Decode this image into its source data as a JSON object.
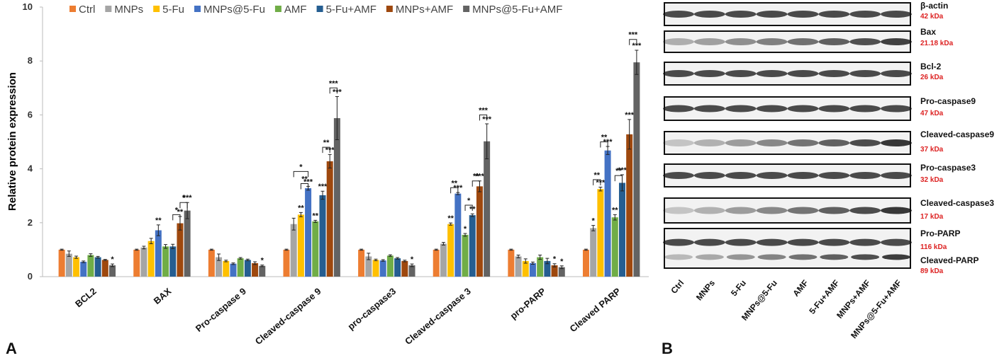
{
  "chart_data": {
    "type": "bar",
    "y_label": "Relative protein expression",
    "categories": [
      "BCL2",
      "BAX",
      "Pro-caspase 9",
      "Cleaved-caspase 9",
      "pro-caspase3",
      "Cleaved-caspase 3",
      "pro-PARP",
      "Cleaved PARP"
    ],
    "ylim": [
      0,
      10
    ],
    "yticks": [
      0,
      2,
      4,
      6,
      8,
      10
    ],
    "grid": false,
    "legend": "top",
    "series": [
      {
        "name": "Ctrl",
        "color": "#ed7d31",
        "values": [
          1,
          1,
          1,
          1,
          1,
          1,
          1,
          1
        ],
        "errors": [
          0.02,
          0.02,
          0.02,
          0.02,
          0.02,
          0.02,
          0.02,
          0.02
        ],
        "significance": [
          null,
          null,
          null,
          null,
          null,
          null,
          null,
          null
        ]
      },
      {
        "name": "MNPs",
        "color": "#a5a5a5",
        "values": [
          0.85,
          1.08,
          0.72,
          1.95,
          0.75,
          1.22,
          0.75,
          1.8
        ],
        "errors": [
          0.1,
          0.05,
          0.12,
          0.22,
          0.12,
          0.05,
          0.05,
          0.1
        ],
        "significance": [
          null,
          null,
          null,
          null,
          null,
          null,
          null,
          "*"
        ]
      },
      {
        "name": "5-Fu",
        "color": "#ffc000",
        "values": [
          0.72,
          1.32,
          0.58,
          2.3,
          0.62,
          1.95,
          0.58,
          3.25
        ],
        "errors": [
          0.04,
          0.1,
          0.03,
          0.08,
          0.03,
          0.04,
          0.08,
          0.07
        ],
        "significance": [
          null,
          null,
          null,
          "**",
          null,
          "**",
          null,
          "***"
        ]
      },
      {
        "name": "MNPs@5-Fu",
        "color": "#4472c4",
        "values": [
          0.55,
          1.72,
          0.48,
          3.28,
          0.6,
          3.08,
          0.5,
          4.68
        ],
        "errors": [
          0.03,
          0.2,
          0.03,
          0.07,
          0.03,
          0.04,
          0.04,
          0.15
        ],
        "significance": [
          null,
          "**",
          null,
          "***",
          null,
          "***",
          null,
          "***"
        ]
      },
      {
        "name": "AMF",
        "color": "#70ad47",
        "values": [
          0.8,
          1.12,
          0.68,
          2.05,
          0.78,
          1.55,
          0.72,
          2.2
        ],
        "errors": [
          0.05,
          0.07,
          0.03,
          0.04,
          0.03,
          0.05,
          0.08,
          0.1
        ],
        "significance": [
          null,
          null,
          null,
          "**",
          null,
          "*",
          null,
          "**"
        ]
      },
      {
        "name": "5-Fu+AMF",
        "color": "#255e91",
        "values": [
          0.72,
          1.12,
          0.62,
          3.02,
          0.68,
          2.28,
          0.58,
          3.48
        ],
        "errors": [
          0.03,
          0.08,
          0.03,
          0.15,
          0.03,
          0.05,
          0.1,
          0.3
        ],
        "significance": [
          null,
          null,
          null,
          "***",
          null,
          "**",
          null,
          "***"
        ]
      },
      {
        "name": "MNPs+AMF",
        "color": "#9e480e",
        "values": [
          0.62,
          1.98,
          0.5,
          4.28,
          0.58,
          3.35,
          0.42,
          5.28
        ],
        "errors": [
          0.02,
          0.25,
          0.05,
          0.25,
          0.03,
          0.2,
          0.06,
          0.55
        ],
        "significance": [
          null,
          "**",
          null,
          "***",
          null,
          "***",
          "*",
          "***"
        ]
      },
      {
        "name": "MNPs@5-Fu+AMF",
        "color": "#636363",
        "values": [
          0.42,
          2.45,
          0.4,
          5.88,
          0.42,
          5.02,
          0.35,
          7.95
        ],
        "errors": [
          0.05,
          0.3,
          0.03,
          0.8,
          0.05,
          0.65,
          0.05,
          0.45
        ],
        "significance": [
          "*",
          "***",
          "*",
          "***",
          "*",
          "***",
          "*",
          "***"
        ]
      }
    ],
    "brackets": [
      {
        "group": 1,
        "from": 5,
        "to": 6,
        "y": 2.3,
        "label": "*"
      },
      {
        "group": 1,
        "from": 6,
        "to": 7,
        "y": 2.75,
        "label": "*"
      },
      {
        "group": 3,
        "from": 1,
        "to": 3,
        "y": 3.9,
        "label": "*"
      },
      {
        "group": 3,
        "from": 2,
        "to": 3,
        "y": 3.45,
        "label": "**"
      },
      {
        "group": 3,
        "from": 5,
        "to": 6,
        "y": 4.8,
        "label": "**"
      },
      {
        "group": 3,
        "from": 6,
        "to": 7,
        "y": 7.0,
        "label": "***"
      },
      {
        "group": 5,
        "from": 2,
        "to": 3,
        "y": 3.3,
        "label": "**"
      },
      {
        "group": 5,
        "from": 4,
        "to": 5,
        "y": 2.65,
        "label": "*"
      },
      {
        "group": 5,
        "from": 5,
        "to": 6,
        "y": 3.55,
        "label": "**"
      },
      {
        "group": 5,
        "from": 6,
        "to": 7,
        "y": 6.0,
        "label": "***"
      },
      {
        "group": 7,
        "from": 1,
        "to": 2,
        "y": 3.6,
        "label": "**"
      },
      {
        "group": 7,
        "from": 2,
        "to": 3,
        "y": 5.0,
        "label": "**"
      },
      {
        "group": 7,
        "from": 4,
        "to": 5,
        "y": 3.75,
        "label": "**"
      },
      {
        "group": 7,
        "from": 6,
        "to": 7,
        "y": 8.8,
        "label": "***"
      }
    ]
  },
  "blot": {
    "bands": [
      {
        "name": "β-actin",
        "size": "42 kDa"
      },
      {
        "name": "Bax",
        "size": "21.18 kDa"
      },
      {
        "name": "Bcl-2",
        "size": "26 kDa"
      },
      {
        "name": "Pro-caspase9",
        "size": "47 kDa"
      },
      {
        "name": "Cleaved-caspase9",
        "size": "37 kDa"
      },
      {
        "name": "Pro-caspase3",
        "size": "32 kDa"
      },
      {
        "name": "Cleaved-caspase3",
        "size": "17 kDa"
      },
      {
        "name": "Pro-PARP",
        "size": "116 kDa"
      },
      {
        "name": "Cleaved-PARP",
        "size": "89 kDa"
      }
    ]
  },
  "panels": [
    "A",
    "B"
  ]
}
